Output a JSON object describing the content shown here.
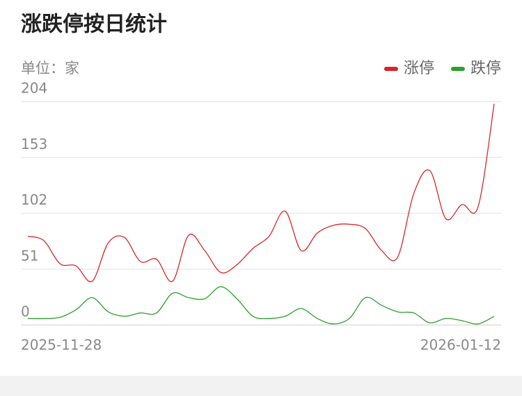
{
  "chart_data": {
    "type": "line",
    "title": "涨跌停按日统计",
    "unit": "单位：家",
    "categories": [
      "2025-11-28",
      null,
      null,
      null,
      null,
      null,
      null,
      null,
      null,
      null,
      null,
      null,
      null,
      null,
      null,
      null,
      null,
      null,
      null,
      null,
      null,
      null,
      null,
      null,
      null,
      null,
      null,
      null,
      null,
      "2026-01-12"
    ],
    "series": [
      {
        "name": "涨停",
        "color": "#d62728",
        "values": [
          81,
          77,
          56,
          54,
          40,
          75,
          80,
          58,
          60,
          40,
          82,
          68,
          48,
          55,
          70,
          81,
          104,
          68,
          84,
          91,
          92,
          88,
          68,
          62,
          120,
          141,
          97,
          110,
          108,
          202
        ]
      },
      {
        "name": "跌停",
        "color": "#2ca02c",
        "values": [
          6,
          6,
          7,
          14,
          25,
          12,
          8,
          11,
          11,
          29,
          25,
          24,
          35,
          24,
          8,
          6,
          8,
          15,
          6,
          1,
          6,
          25,
          18,
          12,
          11,
          2,
          6,
          4,
          1,
          8
        ]
      }
    ],
    "ylim": [
      0,
      204
    ],
    "yticks": [
      0,
      51,
      102,
      153,
      204
    ],
    "grid": true,
    "legend": "top-right"
  }
}
